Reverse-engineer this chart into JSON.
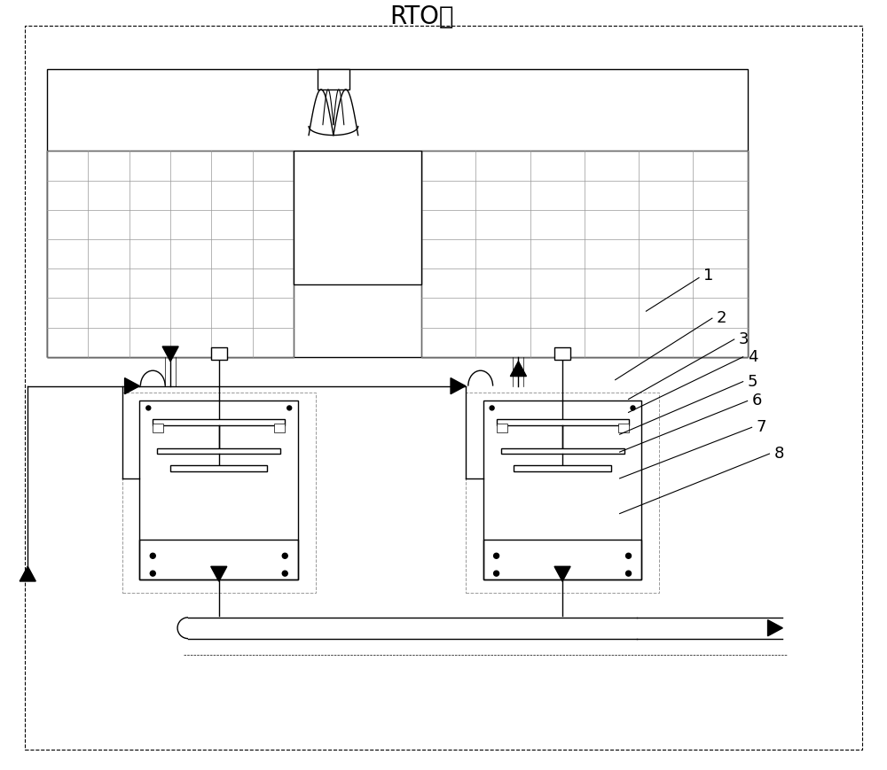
{
  "title": "RTO图",
  "bg_color": "#ffffff",
  "line_color": "#000000",
  "grid_color": "#999999",
  "label_color": "#000000",
  "lw": 1.0,
  "lw_thin": 0.6,
  "dashed_color": "#999999"
}
